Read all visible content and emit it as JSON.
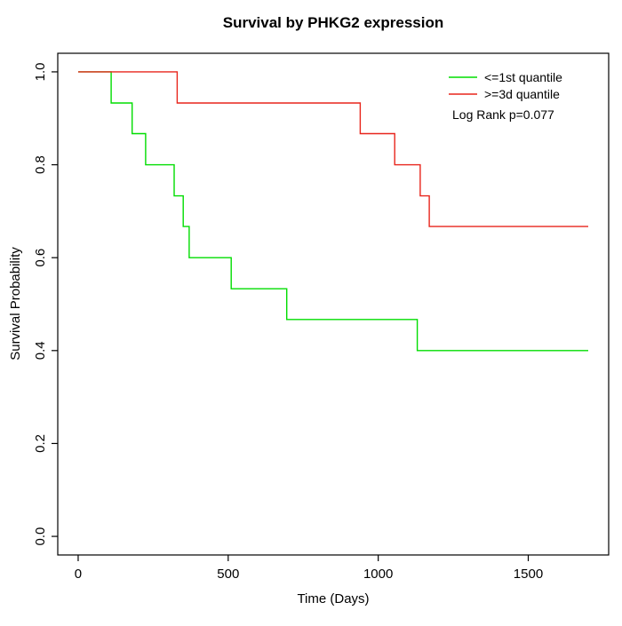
{
  "window": {
    "background": "#ffffff"
  },
  "chart_data": {
    "type": "line",
    "step": true,
    "title": "Survival by PHKG2 expression",
    "xlabel": "Time (Days)",
    "ylabel": "Survival Probability",
    "xlim": [
      0,
      1700
    ],
    "ylim": [
      0.0,
      1.0
    ],
    "x_tick_values": [
      0,
      500,
      1000,
      1500
    ],
    "x_tick_labels": [
      "0",
      "500",
      "1000",
      "1500"
    ],
    "y_tick_values": [
      0.0,
      0.2,
      0.4,
      0.6,
      0.8,
      1.0
    ],
    "y_tick_labels": [
      "0.0",
      "0.2",
      "0.4",
      "0.6",
      "0.8",
      "1.0"
    ],
    "grid": false,
    "legend_position": "top-right",
    "annotation": "Log Rank p=0.077",
    "axis_color": "#000000",
    "series": [
      {
        "name": "<=1st quantile",
        "color": "#00dd00",
        "x": [
          0,
          110,
          180,
          225,
          320,
          350,
          370,
          510,
          695,
          1130,
          1700
        ],
        "y": [
          1.0,
          0.933,
          0.867,
          0.8,
          0.733,
          0.667,
          0.6,
          0.533,
          0.467,
          0.4,
          0.4
        ]
      },
      {
        "name": ">=3d quantile",
        "color": "#e8251c",
        "x": [
          0,
          330,
          940,
          1055,
          1140,
          1170,
          1700
        ],
        "y": [
          1.0,
          0.933,
          0.867,
          0.8,
          0.733,
          0.667,
          0.667
        ]
      }
    ]
  }
}
